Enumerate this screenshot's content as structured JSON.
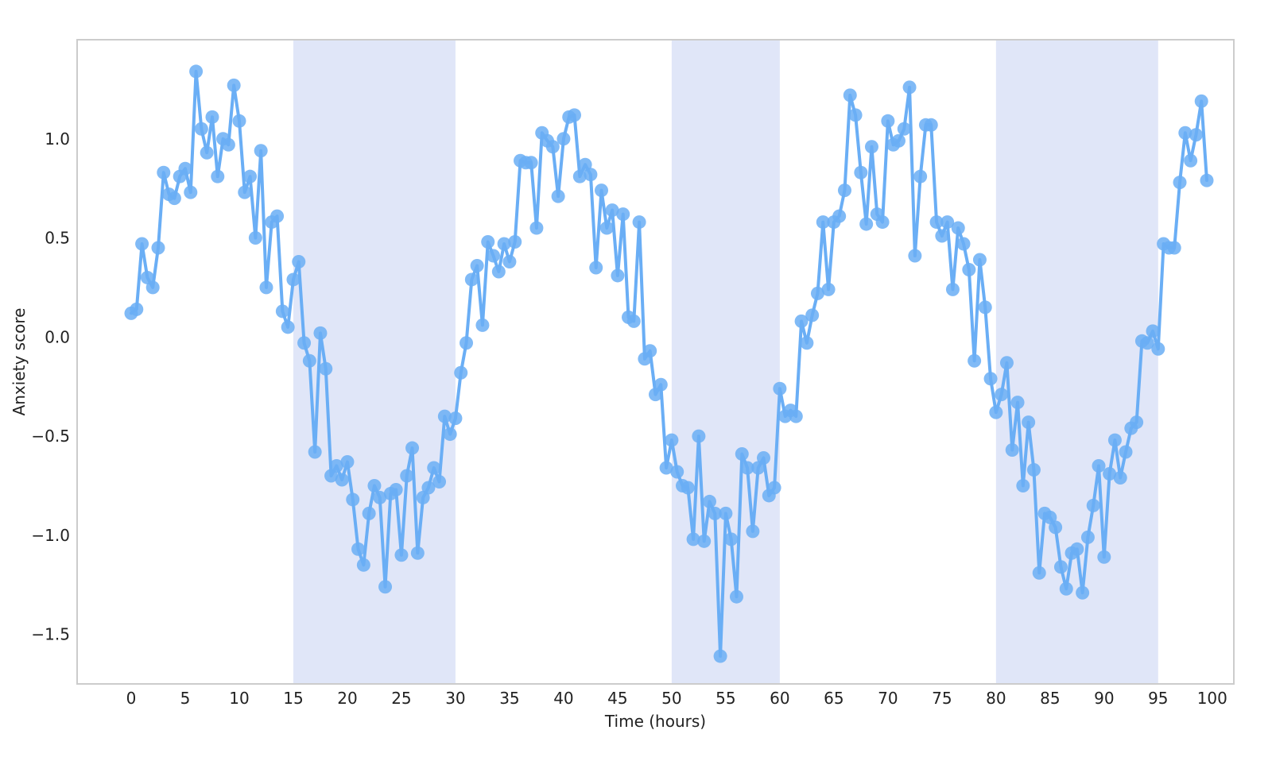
{
  "chart_data": {
    "type": "line",
    "xlabel": "Time (hours)",
    "ylabel": "Anxiety score",
    "xlim": [
      -5,
      102
    ],
    "ylim": [
      -1.75,
      1.5
    ],
    "xticks": [
      0,
      5,
      10,
      15,
      20,
      25,
      30,
      35,
      40,
      45,
      50,
      55,
      60,
      65,
      70,
      75,
      80,
      85,
      90,
      95,
      100
    ],
    "yticks": [
      -1.5,
      -1.0,
      -0.5,
      0.0,
      0.5,
      1.0
    ],
    "ytick_labels": [
      "−1.5",
      "−1.0",
      "−0.5",
      "0.0",
      "0.5",
      "1.0"
    ],
    "grid": false,
    "shaded_regions": [
      [
        15,
        30
      ],
      [
        50,
        60
      ],
      [
        80,
        95
      ]
    ],
    "colors": {
      "line": "#6aaef5",
      "marker": "#6aaef5",
      "shade": "#e0e6f8",
      "frame": "#cccccc"
    },
    "series": [
      {
        "x": [
          0,
          0.5,
          1,
          1.5,
          2,
          2.5,
          3,
          3.5,
          4,
          4.5,
          5,
          5.5,
          6,
          6.5,
          7,
          7.5,
          8,
          8.5,
          9,
          9.5,
          10,
          10.5,
          11,
          11.5,
          12,
          12.5,
          13,
          13.5,
          14,
          14.5,
          15,
          15.5,
          16,
          16.5,
          17,
          17.5,
          18,
          18.5,
          19,
          19.5,
          20,
          20.5,
          21,
          21.5,
          22,
          22.5,
          23,
          23.5,
          24,
          24.5,
          25,
          25.5,
          26,
          26.5,
          27,
          27.5,
          28,
          28.5,
          29,
          29.5,
          30,
          30.5,
          31,
          31.5,
          32,
          32.5,
          33,
          33.5,
          34,
          34.5,
          35,
          35.5,
          36,
          36.5,
          37,
          37.5,
          38,
          38.5,
          39,
          39.5,
          40,
          40.5,
          41,
          41.5,
          42,
          42.5,
          43,
          43.5,
          44,
          44.5,
          45,
          45.5,
          46,
          46.5,
          47,
          47.5,
          48,
          48.5,
          49,
          49.5,
          50,
          50.5,
          51,
          51.5,
          52,
          52.5,
          53,
          53.5,
          54,
          54.5,
          55,
          55.5,
          56,
          56.5,
          57,
          57.5,
          58,
          58.5,
          59,
          59.5,
          60,
          60.5,
          61,
          61.5,
          62,
          62.5,
          63,
          63.5,
          64,
          64.5,
          65,
          65.5,
          66,
          66.5,
          67,
          67.5,
          68,
          68.5,
          69,
          69.5,
          70,
          70.5,
          71,
          71.5,
          72,
          72.5,
          73,
          73.5,
          74,
          74.5,
          75,
          75.5,
          76,
          76.5,
          77,
          77.5,
          78,
          78.5,
          79,
          79.5,
          80,
          80.5,
          81,
          81.5,
          82,
          82.5,
          83,
          83.5,
          84,
          84.5,
          85,
          85.5,
          86,
          86.5,
          87,
          87.5,
          88,
          88.5,
          89,
          89.5,
          90,
          90.5,
          91,
          91.5,
          92,
          92.5,
          93,
          93.5,
          94,
          94.5,
          95,
          95.5,
          96,
          96.5,
          97,
          97.5,
          98,
          98.5,
          99,
          99.5
        ],
        "y": [
          0.12,
          0.14,
          0.47,
          0.3,
          0.25,
          0.45,
          0.83,
          0.72,
          0.7,
          0.81,
          0.85,
          0.73,
          1.34,
          1.05,
          0.93,
          1.11,
          0.81,
          1.0,
          0.97,
          1.27,
          1.09,
          0.73,
          0.81,
          0.5,
          0.94,
          0.25,
          0.58,
          0.61,
          0.13,
          0.05,
          0.29,
          0.38,
          -0.03,
          -0.12,
          -0.58,
          0.02,
          -0.16,
          -0.7,
          -0.65,
          -0.72,
          -0.63,
          -0.82,
          -1.07,
          -1.15,
          -0.89,
          -0.75,
          -0.81,
          -1.26,
          -0.79,
          -0.77,
          -1.1,
          -0.7,
          -0.56,
          -1.09,
          -0.81,
          -0.76,
          -0.66,
          -0.73,
          -0.4,
          -0.49,
          -0.41,
          -0.18,
          -0.03,
          0.29,
          0.36,
          0.06,
          0.48,
          0.41,
          0.33,
          0.47,
          0.38,
          0.48,
          0.89,
          0.88,
          0.88,
          0.55,
          1.03,
          0.99,
          0.96,
          0.71,
          1.0,
          1.11,
          1.12,
          0.81,
          0.87,
          0.82,
          0.35,
          0.74,
          0.55,
          0.64,
          0.31,
          0.62,
          0.1,
          0.08,
          0.58,
          -0.11,
          -0.07,
          -0.29,
          -0.24,
          -0.66,
          -0.52,
          -0.68,
          -0.75,
          -0.76,
          -1.02,
          -0.5,
          -1.03,
          -0.83,
          -0.89,
          -1.61,
          -0.89,
          -1.02,
          -1.31,
          -0.59,
          -0.66,
          -0.98,
          -0.66,
          -0.61,
          -0.8,
          -0.76,
          -0.26,
          -0.4,
          -0.37,
          -0.4,
          0.08,
          -0.03,
          0.11,
          0.22,
          0.58,
          0.24,
          0.58,
          0.61,
          0.74,
          1.22,
          1.12,
          0.83,
          0.57,
          0.96,
          0.62,
          0.58,
          1.09,
          0.97,
          0.99,
          1.05,
          1.26,
          0.41,
          0.81,
          1.07,
          1.07,
          0.58,
          0.51,
          0.58,
          0.24,
          0.55,
          0.47,
          0.34,
          -0.12,
          0.39,
          0.15,
          -0.21,
          -0.38,
          -0.29,
          -0.13,
          -0.57,
          -0.33,
          -0.75,
          -0.43,
          -0.67,
          -1.19,
          -0.89,
          -0.91,
          -0.96,
          -1.16,
          -1.27,
          -1.09,
          -1.07,
          -1.29,
          -1.01,
          -0.85,
          -0.65,
          -1.11,
          -0.69,
          -0.52,
          -0.71,
          -0.58,
          -0.46,
          -0.43,
          -0.02,
          -0.03,
          0.03,
          -0.06,
          0.47,
          0.45,
          0.45,
          0.78,
          1.03,
          0.89,
          1.02,
          1.19,
          0.79
        ]
      }
    ]
  }
}
